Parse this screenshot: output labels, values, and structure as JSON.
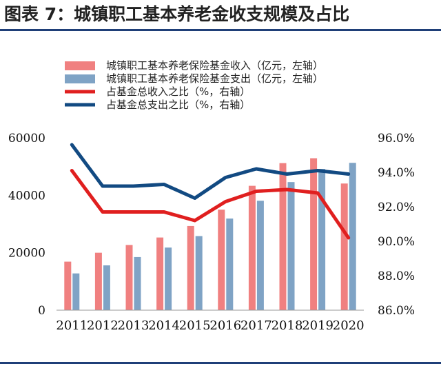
{
  "header": {
    "title": "图表 7：城镇职工基本养老金收支规模及占比"
  },
  "colors": {
    "rule": "#1f3f78",
    "income_bar": "#f08080",
    "expense_bar": "#7fa3c5",
    "income_line": "#e01f1f",
    "expense_line": "#124a82"
  },
  "chart_data": {
    "type": "bar",
    "categories": [
      "2011",
      "2012",
      "2013",
      "2014",
      "2015",
      "2016",
      "2017",
      "2018",
      "2019",
      "2020"
    ],
    "series": [
      {
        "name": "城镇职工基本养老保险基金收入（亿元，左轴）",
        "type": "bar",
        "axis": "left",
        "color": "#f08080",
        "values": [
          16900,
          20000,
          22700,
          25300,
          29300,
          35000,
          43300,
          51200,
          52900,
          44100
        ]
      },
      {
        "name": "城镇职工基本养老保险基金支出（亿元，左轴）",
        "type": "bar",
        "axis": "left",
        "color": "#7fa3c5",
        "values": [
          12800,
          15600,
          18500,
          21800,
          25800,
          31900,
          38100,
          44600,
          49200,
          51300
        ]
      },
      {
        "name": "占基金总收入之比（%，右轴）",
        "type": "line",
        "axis": "right",
        "color": "#e01f1f",
        "values": [
          94.1,
          91.7,
          91.7,
          91.7,
          91.2,
          92.3,
          92.9,
          93.0,
          92.8,
          90.2
        ]
      },
      {
        "name": "占基金总支出之比（%，右轴）",
        "type": "line",
        "axis": "right",
        "color": "#124a82",
        "values": [
          95.6,
          93.2,
          93.2,
          93.3,
          92.5,
          93.7,
          94.2,
          93.9,
          94.1,
          93.9
        ]
      }
    ],
    "y_left": {
      "ylim": [
        0,
        60000
      ],
      "ticks": [
        "0",
        "20000",
        "40000",
        "60000"
      ]
    },
    "y_right": {
      "ylim": [
        86,
        96
      ],
      "ticks": [
        "86.0%",
        "88.0%",
        "90.0%",
        "92.0%",
        "94.0%",
        "96.0%"
      ]
    },
    "legend_position": "top",
    "grid": false
  }
}
